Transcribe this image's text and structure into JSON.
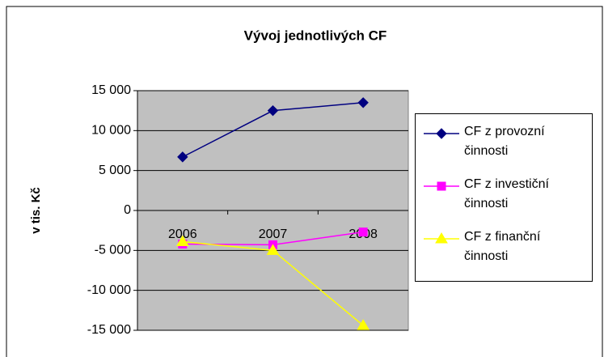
{
  "chart_data": {
    "type": "line",
    "title": "Vývoj jednotlivých CF",
    "y_label": "v tis. Kč",
    "categories": [
      "2006",
      "2007",
      "2008"
    ],
    "series": [
      {
        "name": "CF z provozní činnosti",
        "color": "#000080",
        "marker": "diamond",
        "values": [
          6700,
          12500,
          13500
        ]
      },
      {
        "name": "CF z investiční činnosti",
        "color": "#ff00ff",
        "marker": "square",
        "values": [
          -4200,
          -4300,
          -2700
        ]
      },
      {
        "name": "CF z finanční činnosti",
        "color": "#ffff00",
        "marker": "triangle",
        "values": [
          -3900,
          -5000,
          -14400
        ]
      }
    ],
    "ylim": [
      -15000,
      15000
    ],
    "yticks": [
      {
        "value": -15000,
        "label": "-15 000"
      },
      {
        "value": -10000,
        "label": "-10 000"
      },
      {
        "value": -5000,
        "label": "-5 000"
      },
      0,
      {
        "value": 5000,
        "label": "5 000"
      },
      {
        "value": 10000,
        "label": "10 000"
      },
      {
        "value": 15000,
        "label": "15 000"
      }
    ],
    "grid": true,
    "plot_background": "#c0c0c0",
    "legend": "right"
  }
}
